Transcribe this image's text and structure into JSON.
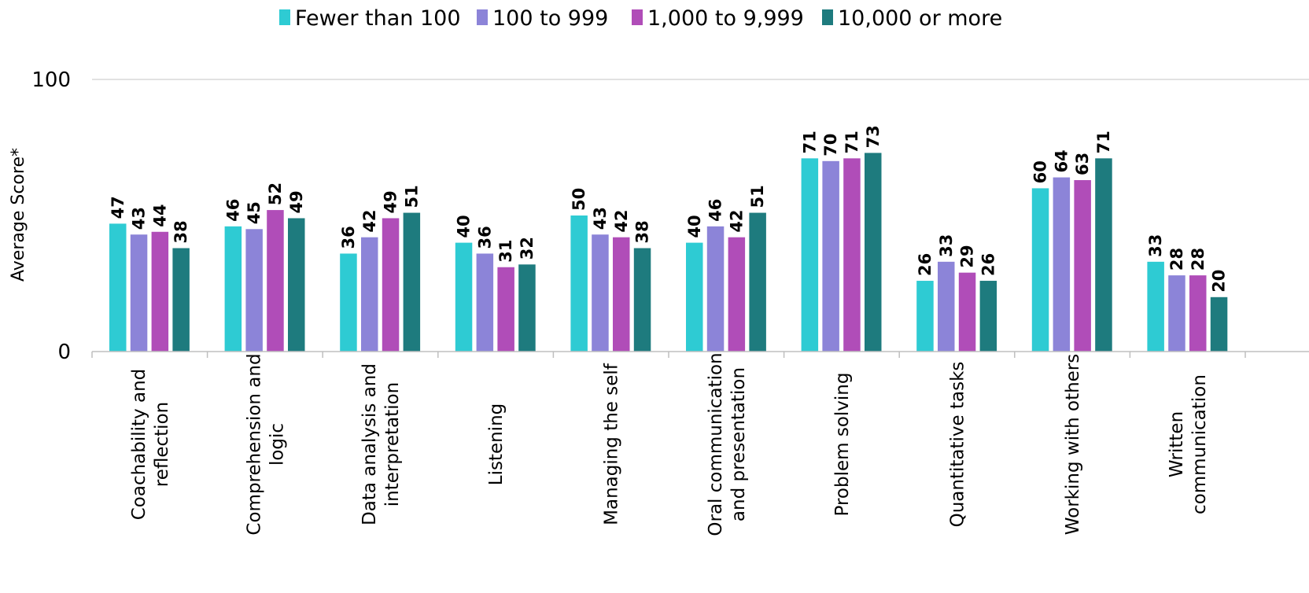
{
  "chart_data": {
    "type": "bar",
    "title": "",
    "xlabel": "",
    "ylabel": "Average Score*",
    "ylim": [
      0,
      100
    ],
    "yticks": [
      "0",
      "100"
    ],
    "grid": true,
    "legend_position": "top",
    "categories": [
      [
        "Coachability and",
        "reflection"
      ],
      [
        "Comprehension and",
        "logic"
      ],
      [
        "Data analysis and",
        "interpretation"
      ],
      [
        "Listening"
      ],
      [
        "Managing the self"
      ],
      [
        "Oral communication",
        "and presentation"
      ],
      [
        "Problem solving"
      ],
      [
        "Quantitative tasks"
      ],
      [
        "Working with others"
      ],
      [
        "Written",
        "communication"
      ]
    ],
    "series": [
      {
        "name": "Fewer than 100",
        "color": "#2ECBD3",
        "values": [
          47,
          46,
          36,
          40,
          50,
          40,
          71,
          26,
          60,
          33
        ]
      },
      {
        "name": "100 to 999",
        "color": "#8C84D8",
        "values": [
          43,
          45,
          42,
          36,
          43,
          46,
          70,
          33,
          64,
          28
        ]
      },
      {
        "name": "1,000 to 9,999",
        "color": "#B04DB8",
        "values": [
          44,
          52,
          49,
          31,
          42,
          42,
          71,
          29,
          63,
          28
        ]
      },
      {
        "name": "10,000 or more",
        "color": "#1E7B7E",
        "values": [
          38,
          49,
          51,
          32,
          38,
          51,
          73,
          26,
          71,
          20
        ]
      }
    ],
    "gridline_color": "#D9D9D9",
    "axis_color": "#BFBFBF"
  }
}
